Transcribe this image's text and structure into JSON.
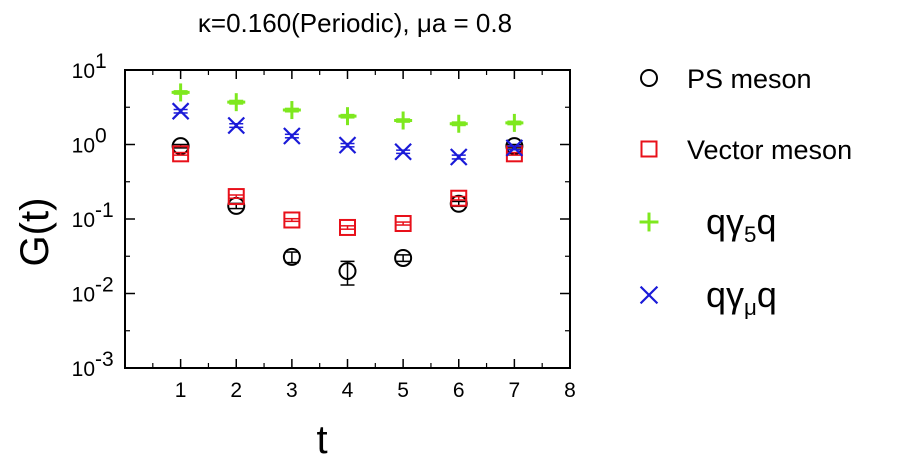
{
  "chart_data": {
    "type": "scatter",
    "title": "κ=0.160(Periodic), μa = 0.8",
    "xlabel": "t",
    "ylabel": "G(t)",
    "xlim": [
      0,
      8
    ],
    "ylim": [
      0.001,
      10
    ],
    "yscale": "log",
    "grid": false,
    "legend_position": "right",
    "x_ticks": [
      "1",
      "2",
      "3",
      "4",
      "5",
      "6",
      "7",
      "8"
    ],
    "y_ticks": [
      {
        "base": "10",
        "exp": "1"
      },
      {
        "base": "10",
        "exp": "0"
      },
      {
        "base": "10",
        "exp": "-1"
      },
      {
        "base": "10",
        "exp": "-2"
      },
      {
        "base": "10",
        "exp": "-3"
      }
    ],
    "series": [
      {
        "name": "PS meson",
        "marker": "circle",
        "color": "#000000",
        "x": [
          1,
          2,
          3,
          4,
          5,
          6,
          7
        ],
        "y": [
          0.95,
          0.15,
          0.031,
          0.02,
          0.03,
          0.16,
          0.95
        ],
        "err": [
          0.05,
          0.012,
          0.005,
          0.007,
          0.003,
          0.012,
          0.05
        ]
      },
      {
        "name": "Vector meson",
        "marker": "square",
        "color": "#e8101a",
        "x": [
          1,
          2,
          3,
          4,
          5,
          6,
          7
        ],
        "y": [
          0.75,
          0.2,
          0.097,
          0.077,
          0.087,
          0.19,
          0.75
        ],
        "err": [
          0.03,
          0.01,
          0.004,
          0.004,
          0.004,
          0.01,
          0.03
        ]
      },
      {
        "name_parts": [
          "qγ",
          "5",
          "q"
        ],
        "marker": "plus",
        "color": "#7ee81e",
        "x": [
          1,
          2,
          3,
          4,
          5,
          6,
          7
        ],
        "y": [
          5.0,
          3.7,
          2.9,
          2.4,
          2.1,
          1.9,
          1.95
        ],
        "err": [
          0.25,
          0.2,
          0.15,
          0.12,
          0.1,
          0.1,
          0.1
        ]
      },
      {
        "name_parts": [
          "qγ",
          "μ",
          "q"
        ],
        "marker": "cross",
        "color": "#1a1ad8",
        "x": [
          1,
          2,
          3,
          4,
          5,
          6,
          7
        ],
        "y": [
          2.8,
          1.8,
          1.3,
          0.98,
          0.8,
          0.68,
          0.9
        ],
        "err": [
          0.15,
          0.1,
          0.07,
          0.05,
          0.04,
          0.04,
          0.05
        ]
      }
    ]
  }
}
